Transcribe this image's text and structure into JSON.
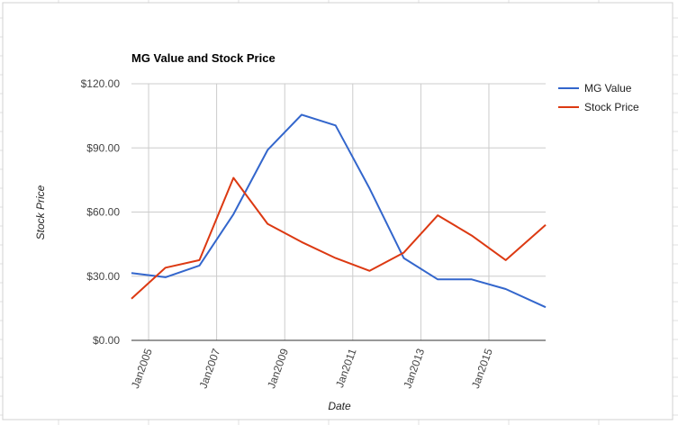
{
  "chart_data": {
    "type": "line",
    "title": "MG Value and Stock Price",
    "xlabel": "Date",
    "ylabel": "Stock Price",
    "x_ticks": [
      "Jan2005",
      "Jan2007",
      "Jan2009",
      "Jan2011",
      "Jan2013",
      "Jan2015"
    ],
    "y_ticks": [
      "$0.00",
      "$30.00",
      "$60.00",
      "$90.00",
      "$120.00"
    ],
    "ylim": [
      0,
      120
    ],
    "xlim": [
      "2004-07-01",
      "2016-09-01"
    ],
    "grid": true,
    "legend_position": "right",
    "series": [
      {
        "name": "MG Value",
        "color": "#3366cc",
        "points": [
          {
            "x": "2004-07-01",
            "y": 31.5
          },
          {
            "x": "2005-07-01",
            "y": 29.5
          },
          {
            "x": "2006-07-01",
            "y": 35.0
          },
          {
            "x": "2007-07-01",
            "y": 59.0
          },
          {
            "x": "2008-07-01",
            "y": 89.0
          },
          {
            "x": "2009-07-01",
            "y": 105.5
          },
          {
            "x": "2010-07-01",
            "y": 100.5
          },
          {
            "x": "2011-07-01",
            "y": 71.0
          },
          {
            "x": "2012-07-01",
            "y": 38.5
          },
          {
            "x": "2013-07-01",
            "y": 28.5
          },
          {
            "x": "2014-07-01",
            "y": 28.5
          },
          {
            "x": "2015-07-01",
            "y": 24.0
          },
          {
            "x": "2016-09-01",
            "y": 15.5
          }
        ]
      },
      {
        "name": "Stock Price",
        "color": "#dc3912",
        "points": [
          {
            "x": "2004-07-01",
            "y": 19.5
          },
          {
            "x": "2005-07-01",
            "y": 34.0
          },
          {
            "x": "2006-07-01",
            "y": 37.5
          },
          {
            "x": "2007-07-01",
            "y": 76.0
          },
          {
            "x": "2008-07-01",
            "y": 54.5
          },
          {
            "x": "2009-07-01",
            "y": 46.0
          },
          {
            "x": "2010-07-01",
            "y": 38.5
          },
          {
            "x": "2011-07-01",
            "y": 32.5
          },
          {
            "x": "2012-07-01",
            "y": 41.0
          },
          {
            "x": "2013-07-01",
            "y": 58.5
          },
          {
            "x": "2014-07-01",
            "y": 49.0
          },
          {
            "x": "2015-07-01",
            "y": 37.5
          },
          {
            "x": "2016-09-01",
            "y": 54.0
          }
        ]
      }
    ]
  }
}
